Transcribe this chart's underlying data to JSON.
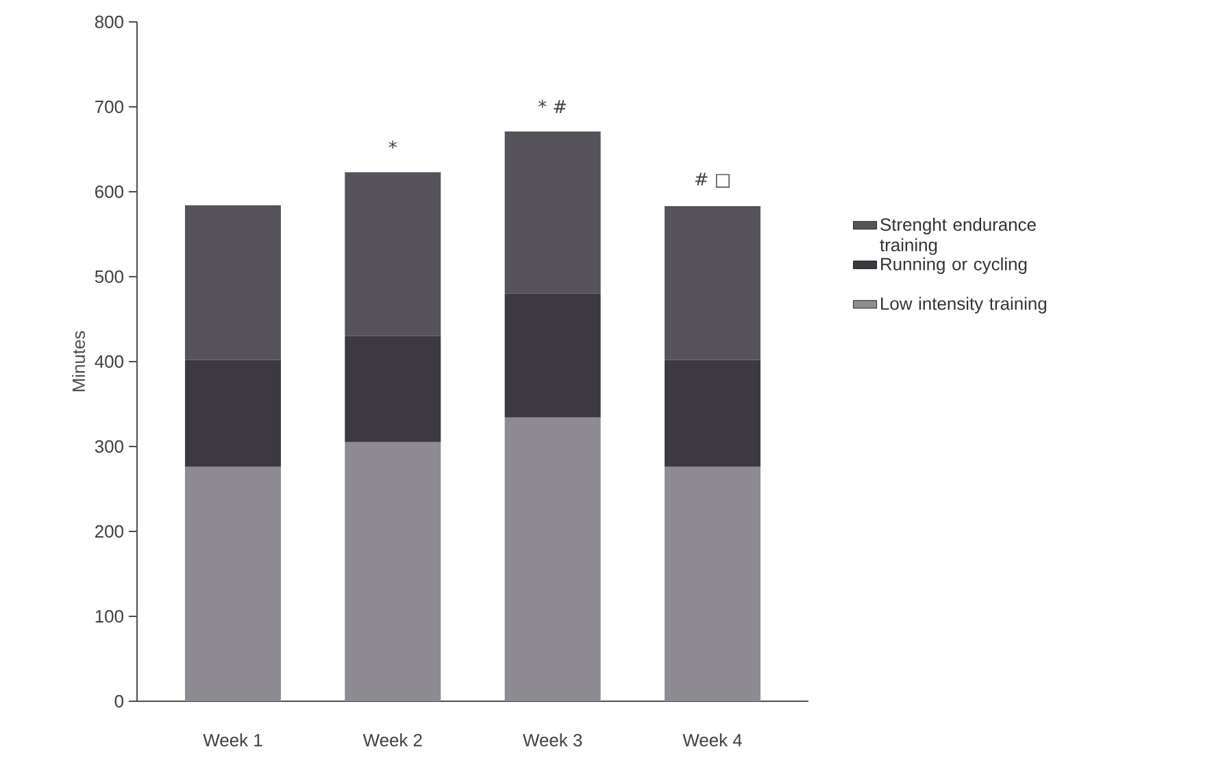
{
  "chart_data": {
    "type": "bar",
    "stacked": true,
    "ylabel": "Minutes",
    "categories": [
      "Week 1",
      "Week 2",
      "Week 3",
      "Week 4"
    ],
    "series": [
      {
        "name": "Low intensity training",
        "color": "#8e8b92",
        "values": [
          276,
          305,
          334,
          276
        ]
      },
      {
        "name": "Running or cycling",
        "color": "#3c3a40",
        "values": [
          126,
          125,
          146,
          126
        ]
      },
      {
        "name": "Strenght endurance training",
        "color": "#56535a",
        "values": [
          182,
          193,
          191,
          181
        ]
      }
    ],
    "ylim": [
      0,
      800
    ],
    "yticks": [
      0,
      100,
      200,
      300,
      400,
      500,
      600,
      700,
      800
    ],
    "annotations": [
      {
        "text": "*",
        "x": "Week 2",
        "y": 623
      },
      {
        "text": "* #",
        "x": "Week 3",
        "y": 671
      },
      {
        "text": "# □",
        "x": "Week 4",
        "y": 583
      }
    ],
    "legend": "right",
    "grid": false
  }
}
